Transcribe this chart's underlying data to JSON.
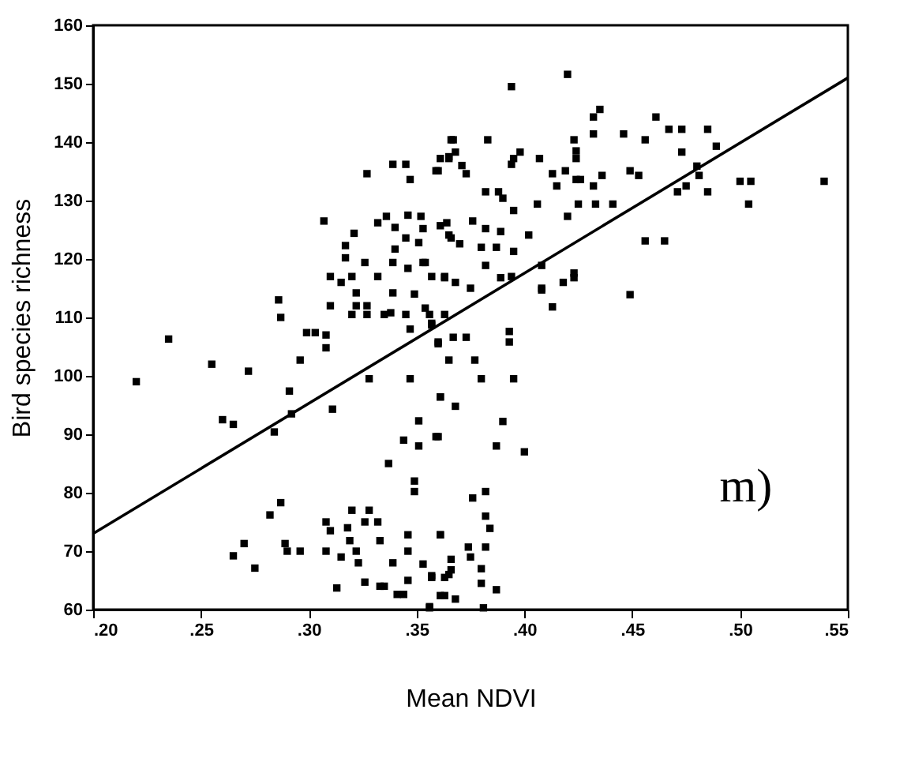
{
  "chart_data": {
    "type": "scatter",
    "xlabel": "Mean NDVI",
    "ylabel": "Bird species richness",
    "annotations": [
      "m)"
    ],
    "xlim": [
      0.2,
      0.55
    ],
    "ylim": [
      60,
      160
    ],
    "xticks": [
      {
        "value": 0.2,
        "label": ".20"
      },
      {
        "value": 0.25,
        "label": ".25"
      },
      {
        "value": 0.3,
        "label": ".30"
      },
      {
        "value": 0.35,
        "label": ".35"
      },
      {
        "value": 0.4,
        "label": ".40"
      },
      {
        "value": 0.45,
        "label": ".45"
      },
      {
        "value": 0.5,
        "label": ".50"
      },
      {
        "value": 0.55,
        "label": ".55"
      }
    ],
    "yticks": [
      60,
      70,
      80,
      90,
      100,
      110,
      120,
      130,
      140,
      150,
      160
    ],
    "grid": false,
    "legend": false,
    "marker": "square",
    "series": [
      {
        "color": "#000000",
        "x": [
          0.22,
          0.235,
          0.255,
          0.26,
          0.265,
          0.272,
          0.284,
          0.291,
          0.292,
          0.286,
          0.287,
          0.296,
          0.299,
          0.303,
          0.308,
          0.308,
          0.311,
          0.31,
          0.315,
          0.32,
          0.322,
          0.327,
          0.328,
          0.337,
          0.338,
          0.344,
          0.347,
          0.347,
          0.351,
          0.351,
          0.357,
          0.36,
          0.361,
          0.359,
          0.349,
          0.349,
          0.265,
          0.27,
          0.275,
          0.282,
          0.287,
          0.289,
          0.29,
          0.296,
          0.308,
          0.31,
          0.308,
          0.313,
          0.315,
          0.318,
          0.319,
          0.32,
          0.328,
          0.322,
          0.323,
          0.326,
          0.332,
          0.333,
          0.326,
          0.333,
          0.335,
          0.339,
          0.341,
          0.344,
          0.346,
          0.346,
          0.346,
          0.353,
          0.357,
          0.356,
          0.361,
          0.363,
          0.365,
          0.354,
          0.357,
          0.36,
          0.365,
          0.367,
          0.373,
          0.377,
          0.38,
          0.393,
          0.393,
          0.395,
          0.361,
          0.368,
          0.39,
          0.36,
          0.387,
          0.4,
          0.413,
          0.408,
          0.449,
          0.376,
          0.382,
          0.382,
          0.384,
          0.361,
          0.374,
          0.382,
          0.375,
          0.366,
          0.366,
          0.38,
          0.357,
          0.363,
          0.38,
          0.387,
          0.361,
          0.368,
          0.356,
          0.381,
          0.327,
          0.307,
          0.321,
          0.317,
          0.317,
          0.326,
          0.332,
          0.339,
          0.345,
          0.347,
          0.31,
          0.332,
          0.336,
          0.34,
          0.345,
          0.346,
          0.352,
          0.353,
          0.351,
          0.34,
          0.339,
          0.346,
          0.354,
          0.357,
          0.363,
          0.36,
          0.365,
          0.366,
          0.364,
          0.366,
          0.32,
          0.327,
          0.335,
          0.345,
          0.356,
          0.363,
          0.339,
          0.349,
          0.322,
          0.394,
          0.42,
          0.367,
          0.383,
          0.361,
          0.365,
          0.368,
          0.371,
          0.373,
          0.359,
          0.394,
          0.395,
          0.398,
          0.407,
          0.423,
          0.424,
          0.424,
          0.432,
          0.435,
          0.432,
          0.446,
          0.456,
          0.461,
          0.467,
          0.473,
          0.485,
          0.473,
          0.489,
          0.413,
          0.419,
          0.415,
          0.424,
          0.426,
          0.432,
          0.436,
          0.449,
          0.453,
          0.382,
          0.388,
          0.39,
          0.395,
          0.406,
          0.425,
          0.433,
          0.441,
          0.42,
          0.471,
          0.475,
          0.48,
          0.481,
          0.485,
          0.5,
          0.505,
          0.504,
          0.539,
          0.456,
          0.465,
          0.402,
          0.408,
          0.423,
          0.423,
          0.418,
          0.408,
          0.389,
          0.394,
          0.382,
          0.395,
          0.38,
          0.387,
          0.376,
          0.382,
          0.389,
          0.363,
          0.368,
          0.375,
          0.353,
          0.361,
          0.365,
          0.37
        ],
        "values": [
          99,
          106.3,
          102,
          92.5,
          91.7,
          100.8,
          90.4,
          97.4,
          93.5,
          113,
          110,
          102.7,
          107.4,
          107.4,
          104.8,
          107,
          94.3,
          112,
          116,
          117,
          112,
          112,
          99.5,
          85,
          110.8,
          89,
          108,
          99.5,
          92.3,
          88,
          108.7,
          105.5,
          96.4,
          89.6,
          82,
          80.2,
          69.2,
          71.3,
          67.1,
          76.2,
          78.3,
          71.3,
          70,
          70,
          75,
          73.5,
          70,
          63.7,
          69,
          74,
          71.8,
          77,
          77,
          70,
          68,
          75,
          75,
          71.8,
          64.7,
          64,
          64,
          68,
          62.6,
          62.6,
          72.8,
          70,
          65,
          67.8,
          65.8,
          60.5,
          72.8,
          62.4,
          66,
          111.6,
          109,
          105.8,
          102.7,
          106.6,
          106.6,
          102.7,
          99.5,
          107.6,
          105.8,
          99.5,
          96.4,
          94.8,
          92.2,
          89.6,
          88,
          87,
          111.8,
          114.7,
          113.9,
          79.1,
          80.2,
          76,
          73.9,
          72.8,
          70.7,
          70.7,
          69,
          68.6,
          66.8,
          67,
          65.5,
          65.5,
          64.5,
          63.4,
          62.4,
          61.8,
          60.3,
          60.3,
          134.6,
          126.5,
          124.4,
          122.3,
          120.2,
          119.4,
          117,
          136.2,
          136.2,
          133.6,
          117,
          126.2,
          127.3,
          125.4,
          123.6,
          127.5,
          127.3,
          125.2,
          122.8,
          121.7,
          119.4,
          118.4,
          119.4,
          117,
          117,
          135.1,
          137.2,
          140.4,
          126.2,
          123.6,
          110.5,
          110.5,
          110.5,
          110.5,
          110.5,
          110.5,
          114.2,
          114,
          114.2,
          149.5,
          151.6,
          140.4,
          140.4,
          137.2,
          137.5,
          138.3,
          136,
          134.6,
          135.1,
          136.2,
          137.2,
          138.3,
          137.2,
          140.4,
          138.5,
          137.2,
          144.3,
          145.6,
          141.4,
          141.4,
          140.4,
          144.3,
          142.2,
          142.2,
          142.2,
          138.3,
          139.3,
          134.6,
          135.1,
          132.5,
          133.6,
          133.6,
          132.5,
          134.3,
          135.1,
          134.3,
          131.5,
          131.5,
          130.4,
          128.3,
          129.4,
          129.4,
          129.4,
          129.4,
          127.3,
          131.5,
          132.5,
          135.9,
          134.3,
          131.5,
          133.3,
          133.3,
          129.4,
          133.3,
          123.1,
          123.1,
          124.1,
          118.9,
          117.6,
          116.8,
          116,
          115,
          116.8,
          117,
          118.9,
          121.3,
          122,
          122,
          126.5,
          125.2,
          124.7,
          116.8,
          116,
          115,
          119.4,
          125.7,
          124.1,
          122.6
        ]
      },
      {
        "type": "line",
        "color": "#000000",
        "marker": "none",
        "line_style": "solid",
        "x": [
          0.2,
          0.55
        ],
        "values": [
          73,
          151
        ]
      }
    ]
  }
}
